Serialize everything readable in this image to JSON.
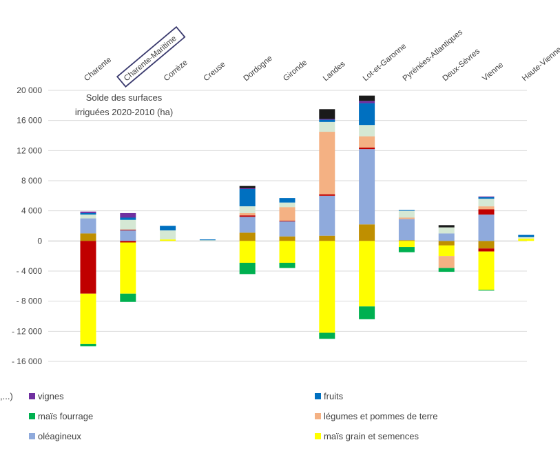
{
  "chart_data": {
    "type": "bar",
    "stacked": true,
    "annotation": "Solde des surfaces irriguées 2020-2010 (ha)",
    "annotation_lines": [
      "Solde des surfaces",
      "irriguées 2020-2010 (ha)"
    ],
    "highlighted_category": "Charente-Maritime",
    "highlight_color": "#3a3a6e",
    "ylim": [
      -16000,
      20000
    ],
    "yticks": [
      -16000,
      -12000,
      -8000,
      -4000,
      0,
      4000,
      8000,
      12000,
      16000,
      20000
    ],
    "ytick_labels": [
      "- 16 000",
      "- 12 000",
      "- 8 000",
      "- 4 000",
      "0",
      "4 000",
      "8 000",
      "12 000",
      "16 000",
      "20 000"
    ],
    "grid": true,
    "categories": [
      "Charente",
      "Charente-Maritime",
      "Corrèze",
      "Creuse",
      "Dordogne",
      "Gironde",
      "Landes",
      "Lot-et-Garonne",
      "Pyrénées-Atlantiques",
      "Deux-Sèvres",
      "Vienne",
      "Haute-Vienne"
    ],
    "series": [
      {
        "key": "ble",
        "color": "#bf8f00",
        "values": [
          1000,
          0,
          0,
          0,
          1100,
          600,
          700,
          2200,
          100,
          -600,
          -1000,
          0
        ]
      },
      {
        "key": "sorgho",
        "color": "#c00000",
        "values": [
          -7000,
          -200,
          0,
          0,
          0,
          0,
          0,
          0,
          0,
          0,
          -400,
          0
        ]
      },
      {
        "key": "mais_grain",
        "color": "#ffff00",
        "values": [
          -6700,
          -6800,
          200,
          0,
          -2900,
          -2900,
          -12200,
          -8700,
          -800,
          -1400,
          -5100,
          300
        ]
      },
      {
        "key": "oleagineux",
        "color": "#8faadc",
        "values": [
          2000,
          1400,
          0,
          0,
          2100,
          2000,
          5300,
          10000,
          2800,
          1000,
          3500,
          0
        ]
      },
      {
        "key": "maraichage",
        "color": "#c00000",
        "values": [
          0,
          100,
          0,
          0,
          200,
          100,
          200,
          200,
          0,
          0,
          700,
          0
        ]
      },
      {
        "key": "legumes",
        "color": "#f4b183",
        "values": [
          0,
          0,
          0,
          0,
          300,
          1800,
          8300,
          1500,
          200,
          -1600,
          400,
          0
        ]
      },
      {
        "key": "mais_fourrage",
        "color": "#00b050",
        "values": [
          -300,
          -1100,
          0,
          0,
          -1500,
          -700,
          -800,
          -1700,
          -700,
          -500,
          -100,
          0
        ]
      },
      {
        "key": "prairies",
        "color": "#d5e8d4",
        "values": [
          500,
          1300,
          1200,
          100,
          900,
          600,
          1300,
          1500,
          900,
          800,
          1000,
          200
        ]
      },
      {
        "key": "fruits",
        "color": "#0070c0",
        "values": [
          200,
          300,
          600,
          100,
          2300,
          600,
          300,
          2900,
          100,
          0,
          200,
          300
        ]
      },
      {
        "key": "vignes",
        "color": "#7030a0",
        "values": [
          200,
          600,
          0,
          0,
          100,
          0,
          100,
          300,
          0,
          0,
          100,
          0
        ]
      },
      {
        "key": "autres",
        "color": "#1a1a1a",
        "values": [
          0,
          0,
          0,
          0,
          300,
          0,
          1300,
          700,
          0,
          300,
          0,
          0
        ]
      },
      {
        "key": "creuse_misc",
        "color": "#a6a6a6",
        "values": [
          0,
          0,
          0,
          0,
          0,
          0,
          0,
          0,
          0,
          0,
          0,
          0
        ]
      }
    ],
    "legend": [
      {
        "label": ",...)",
        "color": ""
      },
      {
        "label": "vignes",
        "color": "#7030a0"
      },
      {
        "label": "fruits",
        "color": "#0070c0"
      },
      {
        "label": "maïs fourrage",
        "color": "#00b050"
      },
      {
        "label": "légumes et pommes de terre",
        "color": "#f4b183"
      },
      {
        "label": "oléagineux",
        "color": "#8faadc"
      },
      {
        "label": "maïs grain et semences",
        "color": "#ffff00"
      }
    ]
  }
}
